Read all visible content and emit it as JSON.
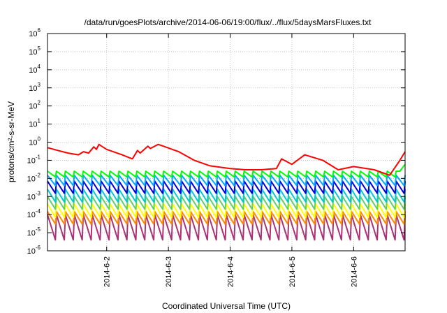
{
  "chart_data": {
    "type": "line",
    "title": "/data/run/goesPlots/archive/2014-06-06/19:00/flux/../flux/5daysMarsFluxes.txt",
    "xlabel": "Coordinated Universal Time (UTC)",
    "ylabel": "protons/cm²-s-sr-MeV",
    "y_scale": "log",
    "ylim": [
      1e-06,
      1000000.0
    ],
    "xlim": [
      "2014-06-01T01:00",
      "2014-06-06T20:00"
    ],
    "y_tick_labels": [
      {
        "value": 1000000.0,
        "base": "10",
        "exp": "6"
      },
      {
        "value": 100000.0,
        "base": "10",
        "exp": "5"
      },
      {
        "value": 10000.0,
        "base": "10",
        "exp": "4"
      },
      {
        "value": 1000.0,
        "base": "10",
        "exp": "3"
      },
      {
        "value": 100.0,
        "base": "10",
        "exp": "2"
      },
      {
        "value": 10.0,
        "base": "10",
        "exp": "1"
      },
      {
        "value": 1.0,
        "base": "10",
        "exp": "0"
      },
      {
        "value": 0.1,
        "base": "10",
        "exp": "-1"
      },
      {
        "value": 0.01,
        "base": "10",
        "exp": "-2"
      },
      {
        "value": 0.001,
        "base": "10",
        "exp": "-3"
      },
      {
        "value": 0.0001,
        "base": "10",
        "exp": "-4"
      },
      {
        "value": 1e-05,
        "base": "10",
        "exp": "-5"
      },
      {
        "value": 1e-06,
        "base": "10",
        "exp": "-6"
      }
    ],
    "x_ticks": [
      {
        "value": "2014-06-02T00:00",
        "label": "2014-6-2"
      },
      {
        "value": "2014-06-03T00:00",
        "label": "2014-6-3"
      },
      {
        "value": "2014-06-04T00:00",
        "label": "2014-6-4"
      },
      {
        "value": "2014-06-05T00:00",
        "label": "2014-6-5"
      },
      {
        "value": "2014-06-06T00:00",
        "label": "2014-6-6"
      }
    ],
    "grid": true,
    "legend": "none",
    "series": [
      {
        "color": "#ff0000",
        "x": [
          "2014-06-01T01:00",
          "2014-06-01T05:00",
          "2014-06-01T09:00",
          "2014-06-01T13:00",
          "2014-06-01T15:00",
          "2014-06-01T17:00",
          "2014-06-01T19:00",
          "2014-06-01T20:00",
          "2014-06-01T21:00",
          "2014-06-01T22:00",
          "2014-06-02T00:00",
          "2014-06-02T06:00",
          "2014-06-02T10:00",
          "2014-06-02T12:00",
          "2014-06-02T13:00",
          "2014-06-02T16:00",
          "2014-06-02T17:00",
          "2014-06-02T20:00",
          "2014-06-02T22:00",
          "2014-06-03T04:00",
          "2014-06-03T10:00",
          "2014-06-03T16:00",
          "2014-06-04T00:00",
          "2014-06-04T06:00",
          "2014-06-04T12:00",
          "2014-06-04T18:00",
          "2014-06-04T20:00",
          "2014-06-05T00:00",
          "2014-06-05T05:00",
          "2014-06-05T12:00",
          "2014-06-05T18:00",
          "2014-06-06T00:00",
          "2014-06-06T08:00",
          "2014-06-06T14:00",
          "2014-06-06T18:00",
          "2014-06-06T20:00"
        ],
        "y": [
          0.5,
          0.35,
          0.25,
          0.2,
          0.3,
          0.25,
          0.55,
          0.4,
          0.75,
          0.6,
          0.4,
          0.2,
          0.12,
          0.35,
          0.25,
          0.6,
          0.45,
          0.75,
          0.6,
          0.3,
          0.1,
          0.05,
          0.035,
          0.03,
          0.03,
          0.035,
          0.12,
          0.06,
          0.2,
          0.1,
          0.03,
          0.045,
          0.03,
          0.015,
          0.1,
          0.3
        ]
      },
      {
        "color": "#00ff00",
        "y_min": 0.012,
        "y_max": 0.025,
        "spikes": 40,
        "rise": "2014-06-06T18:00",
        "rise_y": 0.06
      },
      {
        "color": "#00aaff",
        "y_min": 0.004,
        "y_max": 0.015,
        "spikes": 40
      },
      {
        "color": "#0000dd",
        "y_min": 0.0015,
        "y_max": 0.007,
        "spikes": 40
      },
      {
        "color": "#00cccc",
        "y_min": 0.0005,
        "y_max": 0.0025,
        "spikes": 40
      },
      {
        "color": "#66cc66",
        "y_min": 0.0002,
        "y_max": 0.001,
        "spikes": 40
      },
      {
        "color": "#ffff00",
        "y_min": 7e-05,
        "y_max": 0.0004,
        "spikes": 40
      },
      {
        "color": "#ff8800",
        "y_min": 3e-05,
        "y_max": 0.00015,
        "spikes": 40
      },
      {
        "color": "#aa3377",
        "y_min": 4e-06,
        "y_max": 0.0001,
        "spikes": 40
      }
    ]
  }
}
